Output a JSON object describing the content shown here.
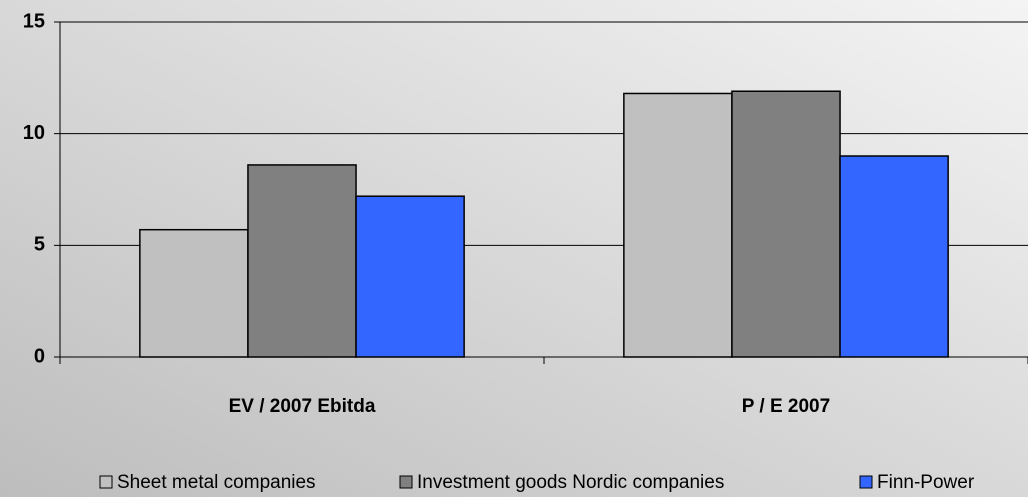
{
  "chart_data": {
    "type": "bar",
    "categories": [
      "EV / 2007 Ebitda",
      "P / E 2007"
    ],
    "series": [
      {
        "name": "Sheet metal companies",
        "color": "#c0c0c0",
        "values": [
          5.7,
          11.8
        ]
      },
      {
        "name": "Investment goods Nordic companies",
        "color": "#808080",
        "values": [
          8.6,
          11.9
        ]
      },
      {
        "name": "Finn-Power",
        "color": "#3366ff",
        "values": [
          7.2,
          9.0
        ]
      }
    ],
    "ylim": [
      0,
      15
    ],
    "yticks": [
      0,
      5,
      10,
      15
    ],
    "grid": true,
    "legend": "bottom"
  }
}
